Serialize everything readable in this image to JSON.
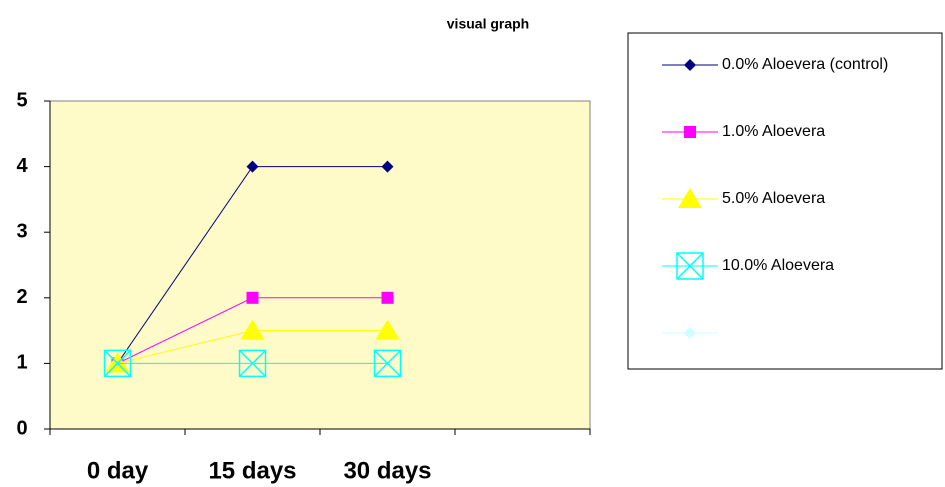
{
  "chart_data": {
    "type": "line",
    "title": "visual graph",
    "categories": [
      "0 day",
      "15 days",
      "30 days",
      null
    ],
    "series": [
      {
        "name": "0.0% Aloevera (control)",
        "color": "#000080",
        "marker": "diamond",
        "values": [
          1,
          4,
          4,
          null
        ]
      },
      {
        "name": "1.0% Aloevera",
        "color": "#ff00ff",
        "marker": "square",
        "values": [
          1,
          2,
          2,
          null
        ]
      },
      {
        "name": "5.0% Aloevera",
        "color": "#ffff00",
        "marker": "triangle",
        "values": [
          1,
          1.5,
          1.5,
          null
        ]
      },
      {
        "name": "10.0% Aloevera",
        "color": "#00ffff",
        "marker": "boxcross",
        "values": [
          1,
          1,
          1,
          null
        ]
      },
      {
        "name": null,
        "color": "#ccffff",
        "marker": "diamond",
        "values": [
          null,
          null,
          null,
          null
        ]
      }
    ],
    "ylim": [
      0,
      5
    ],
    "yticks": [
      0,
      1,
      2,
      3,
      4,
      5
    ],
    "grid": false,
    "legend": "right"
  }
}
